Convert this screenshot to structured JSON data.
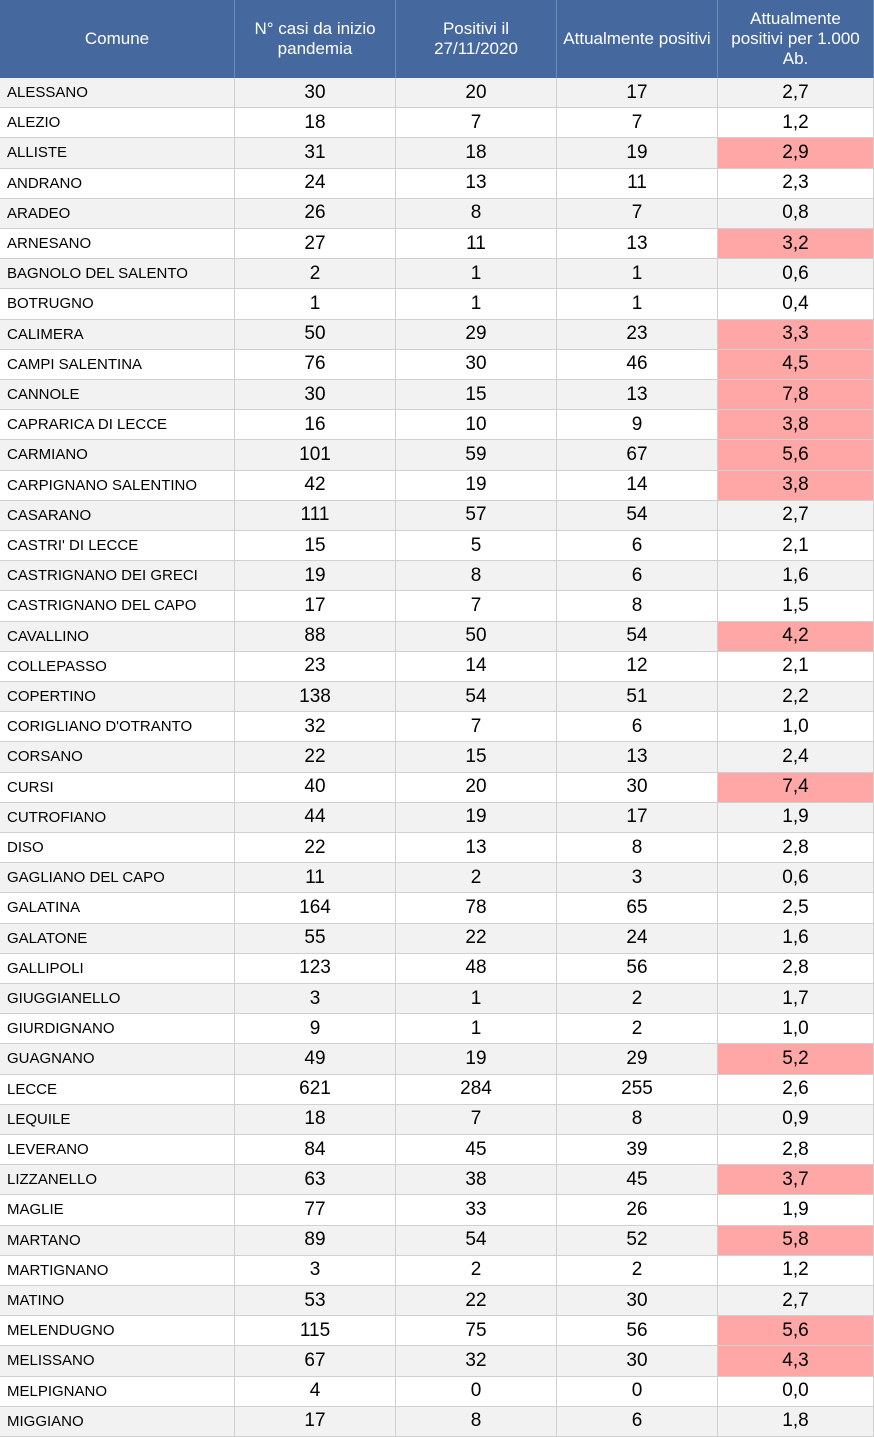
{
  "table": {
    "header": [
      "Comune",
      "N° casi da inizio pandemia",
      "Positivi il 27/11/2020",
      "Attualmente positivi",
      "Attualmente positivi per 1.000 Ab."
    ],
    "highlight_color": "#ffa6a6",
    "rows": [
      {
        "cells": [
          "ALESSANO",
          "30",
          "20",
          "17",
          "2,7"
        ]
      },
      {
        "cells": [
          "ALEZIO",
          "18",
          "7",
          "7",
          "1,2"
        ]
      },
      {
        "cells": [
          "ALLISTE",
          "31",
          "18",
          "19",
          "2,9"
        ],
        "highlighted": true
      },
      {
        "cells": [
          "ANDRANO",
          "24",
          "13",
          "11",
          "2,3"
        ]
      },
      {
        "cells": [
          "ARADEO",
          "26",
          "8",
          "7",
          "0,8"
        ]
      },
      {
        "cells": [
          "ARNESANO",
          "27",
          "11",
          "13",
          "3,2"
        ],
        "highlighted": true
      },
      {
        "cells": [
          "BAGNOLO DEL SALENTO",
          "2",
          "1",
          "1",
          "0,6"
        ]
      },
      {
        "cells": [
          "BOTRUGNO",
          "1",
          "1",
          "1",
          "0,4"
        ]
      },
      {
        "cells": [
          "CALIMERA",
          "50",
          "29",
          "23",
          "3,3"
        ],
        "highlighted": true
      },
      {
        "cells": [
          "CAMPI SALENTINA",
          "76",
          "30",
          "46",
          "4,5"
        ],
        "highlighted": true
      },
      {
        "cells": [
          "CANNOLE",
          "30",
          "15",
          "13",
          "7,8"
        ],
        "highlighted": true
      },
      {
        "cells": [
          "CAPRARICA DI LECCE",
          "16",
          "10",
          "9",
          "3,8"
        ],
        "highlighted": true
      },
      {
        "cells": [
          "CARMIANO",
          "101",
          "59",
          "67",
          "5,6"
        ],
        "highlighted": true
      },
      {
        "cells": [
          "CARPIGNANO SALENTINO",
          "42",
          "19",
          "14",
          "3,8"
        ],
        "highlighted": true
      },
      {
        "cells": [
          "CASARANO",
          "111",
          "57",
          "54",
          "2,7"
        ]
      },
      {
        "cells": [
          "CASTRI' DI LECCE",
          "15",
          "5",
          "6",
          "2,1"
        ]
      },
      {
        "cells": [
          "CASTRIGNANO DEI GRECI",
          "19",
          "8",
          "6",
          "1,6"
        ]
      },
      {
        "cells": [
          "CASTRIGNANO DEL CAPO",
          "17",
          "7",
          "8",
          "1,5"
        ]
      },
      {
        "cells": [
          "CAVALLINO",
          "88",
          "50",
          "54",
          "4,2"
        ],
        "highlighted": true
      },
      {
        "cells": [
          "COLLEPASSO",
          "23",
          "14",
          "12",
          "2,1"
        ]
      },
      {
        "cells": [
          "COPERTINO",
          "138",
          "54",
          "51",
          "2,2"
        ]
      },
      {
        "cells": [
          "CORIGLIANO D'OTRANTO",
          "32",
          "7",
          "6",
          "1,0"
        ]
      },
      {
        "cells": [
          "CORSANO",
          "22",
          "15",
          "13",
          "2,4"
        ]
      },
      {
        "cells": [
          "CURSI",
          "40",
          "20",
          "30",
          "7,4"
        ],
        "highlighted": true
      },
      {
        "cells": [
          "CUTROFIANO",
          "44",
          "19",
          "17",
          "1,9"
        ]
      },
      {
        "cells": [
          "DISO",
          "22",
          "13",
          "8",
          "2,8"
        ]
      },
      {
        "cells": [
          "GAGLIANO DEL CAPO",
          "11",
          "2",
          "3",
          "0,6"
        ]
      },
      {
        "cells": [
          "GALATINA",
          "164",
          "78",
          "65",
          "2,5"
        ]
      },
      {
        "cells": [
          "GALATONE",
          "55",
          "22",
          "24",
          "1,6"
        ]
      },
      {
        "cells": [
          "GALLIPOLI",
          "123",
          "48",
          "56",
          "2,8"
        ]
      },
      {
        "cells": [
          "GIUGGIANELLO",
          "3",
          "1",
          "2",
          "1,7"
        ]
      },
      {
        "cells": [
          "GIURDIGNANO",
          "9",
          "1",
          "2",
          "1,0"
        ]
      },
      {
        "cells": [
          "GUAGNANO",
          "49",
          "19",
          "29",
          "5,2"
        ],
        "highlighted": true
      },
      {
        "cells": [
          "LECCE",
          "621",
          "284",
          "255",
          "2,6"
        ]
      },
      {
        "cells": [
          "LEQUILE",
          "18",
          "7",
          "8",
          "0,9"
        ]
      },
      {
        "cells": [
          "LEVERANO",
          "84",
          "45",
          "39",
          "2,8"
        ]
      },
      {
        "cells": [
          "LIZZANELLO",
          "63",
          "38",
          "45",
          "3,7"
        ],
        "highlighted": true
      },
      {
        "cells": [
          "MAGLIE",
          "77",
          "33",
          "26",
          "1,9"
        ]
      },
      {
        "cells": [
          "MARTANO",
          "89",
          "54",
          "52",
          "5,8"
        ],
        "highlighted": true
      },
      {
        "cells": [
          "MARTIGNANO",
          "3",
          "2",
          "2",
          "1,2"
        ]
      },
      {
        "cells": [
          "MATINO",
          "53",
          "22",
          "30",
          "2,7"
        ]
      },
      {
        "cells": [
          "MELENDUGNO",
          "115",
          "75",
          "56",
          "5,6"
        ],
        "highlighted": true
      },
      {
        "cells": [
          "MELISSANO",
          "67",
          "32",
          "30",
          "4,3"
        ],
        "highlighted": true
      },
      {
        "cells": [
          "MELPIGNANO",
          "4",
          "0",
          "0",
          "0,0"
        ]
      },
      {
        "cells": [
          "MIGGIANO",
          "17",
          "8",
          "6",
          "1,8"
        ]
      }
    ]
  }
}
